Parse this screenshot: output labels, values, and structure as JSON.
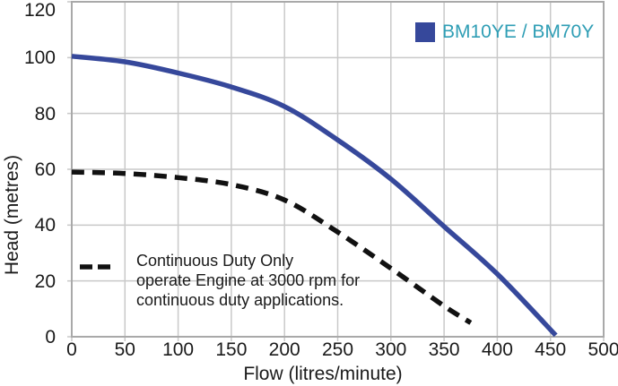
{
  "chart": {
    "background": "#ffffff",
    "grid_color": "#c9c9c9",
    "frame_color": "#a9a9a9",
    "text_color": "#1a1a1a"
  },
  "chart_data": {
    "type": "line",
    "title": "",
    "xlabel": "Flow (litres/minute)",
    "ylabel": "Head (metres)",
    "xlim": [
      0,
      500
    ],
    "ylim": [
      0,
      120
    ],
    "xticks": [
      0,
      50,
      100,
      150,
      200,
      250,
      300,
      350,
      400,
      450,
      500
    ],
    "yticks": [
      0,
      20,
      40,
      60,
      80,
      100,
      120
    ],
    "grid": true,
    "legend_position": "top-right",
    "series": [
      {
        "name": "BM10YE / BM70Y",
        "style": "solid",
        "color": "#36489b",
        "points": [
          [
            0,
            100.5
          ],
          [
            50,
            98.5
          ],
          [
            100,
            94.5
          ],
          [
            150,
            89.5
          ],
          [
            200,
            82.5
          ],
          [
            250,
            70.5
          ],
          [
            300,
            56.5
          ],
          [
            350,
            39.5
          ],
          [
            400,
            22.5
          ],
          [
            455,
            0.5
          ]
        ]
      },
      {
        "name": "Continuous Duty Only (3000 rpm)",
        "style": "dashed",
        "color": "#111111",
        "points": [
          [
            0,
            59
          ],
          [
            50,
            58.5
          ],
          [
            100,
            57
          ],
          [
            150,
            54.5
          ],
          [
            200,
            49
          ],
          [
            250,
            37.5
          ],
          [
            300,
            24.5
          ],
          [
            350,
            11
          ],
          [
            375,
            5
          ]
        ]
      }
    ]
  },
  "legend": {
    "label": "BM10YE / BM70Y",
    "swatch_color": "#36489b",
    "label_color": "#2f9eb5"
  },
  "annotation": {
    "lines": [
      "Continuous Duty Only",
      "operate Engine at 3000 rpm for",
      "continuous duty applications."
    ]
  }
}
